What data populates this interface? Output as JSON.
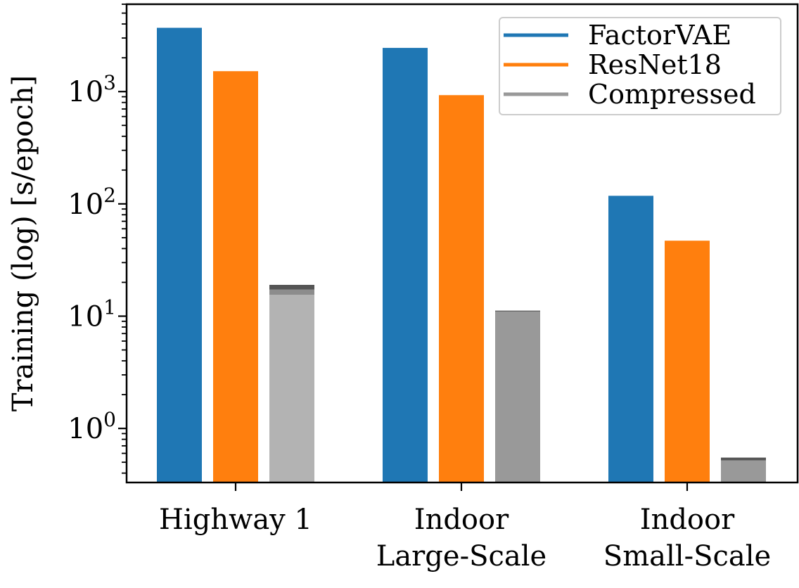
{
  "chart_data": {
    "type": "bar",
    "title": "",
    "xlabel": "",
    "ylabel": "Training (log) [s/epoch]",
    "yscale": "log",
    "ylim": [
      0.33,
      6000
    ],
    "yticks": [
      {
        "value": 1,
        "base": "10",
        "exp": "0"
      },
      {
        "value": 10,
        "base": "10",
        "exp": "1"
      },
      {
        "value": 100,
        "base": "10",
        "exp": "2"
      },
      {
        "value": 1000,
        "base": "10",
        "exp": "3"
      }
    ],
    "categories": [
      {
        "lines": [
          "Highway 1"
        ]
      },
      {
        "lines": [
          "Indoor",
          "Large-Scale"
        ]
      },
      {
        "lines": [
          "Indoor",
          "Small-Scale"
        ]
      }
    ],
    "series": [
      {
        "name": "FactorVAE",
        "color": "#1f77b4",
        "values": [
          3700,
          2450,
          118
        ]
      },
      {
        "name": "ResNet18",
        "color": "#ff7f0e",
        "values": [
          1520,
          930,
          47
        ]
      },
      {
        "name": "Compressed",
        "color": "#999999",
        "values": [
          11.2,
          11.2,
          0.55
        ],
        "stacks": [
          [
            {
              "value": 15.5,
              "color": "#b3b3b3"
            },
            {
              "value": 17.3,
              "color": "#8c8c8c"
            },
            {
              "value": 19.0,
              "color": "#555555"
            }
          ],
          [
            {
              "value": 11.0,
              "color": "#999999"
            },
            {
              "value": 11.2,
              "color": "#555555"
            }
          ],
          [
            {
              "value": 0.52,
              "color": "#999999"
            },
            {
              "value": 0.55,
              "color": "#555555"
            }
          ]
        ]
      }
    ],
    "legend": {
      "position": "top-right"
    },
    "grid": false
  }
}
